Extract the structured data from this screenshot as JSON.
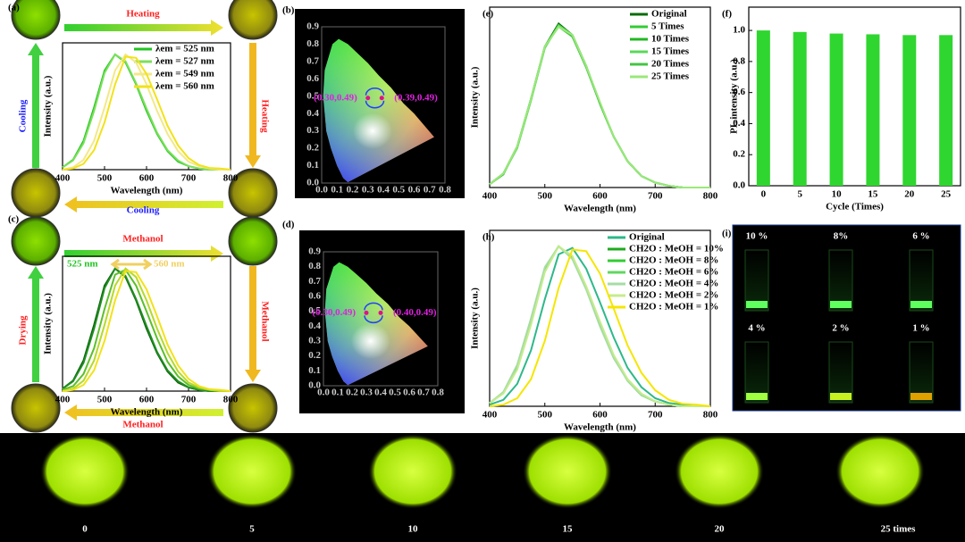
{
  "panel_labels": [
    "(a)",
    "(b)",
    "(c)",
    "(d)",
    "(e)",
    "(f)",
    "(g)",
    "(h)",
    "(i)"
  ],
  "arrows_a": [
    "Heating",
    "Heating",
    "Cooling",
    "Cooling"
  ],
  "arrows_c": [
    "Methanol",
    "Methanol",
    "Methanol",
    "Drying"
  ],
  "cie": [
    {
      "xticks": [
        {
          "value": 0,
          "label": "0.0"
        },
        0.1,
        0.2,
        0.3,
        0.4,
        0.5,
        0.6,
        0.7,
        0.8
      ],
      "yticks": [
        {
          "value": 0,
          "label": "0.0"
        },
        0.1,
        0.2,
        0.3,
        0.4,
        0.5,
        0.6,
        0.7,
        0.8,
        0.9
      ],
      "points": [
        {
          "label": "(0.30,0.49)",
          "x": 0.3,
          "y": 0.49
        },
        {
          "label": "(0.39,0.49)",
          "x": 0.39,
          "y": 0.49
        }
      ]
    },
    {
      "xticks": [
        {
          "value": 0,
          "label": "0.0"
        },
        0.1,
        0.2,
        0.3,
        0.4,
        0.5,
        0.6,
        0.7,
        0.8
      ],
      "yticks": [
        {
          "value": 0,
          "label": "0.0"
        },
        0.1,
        0.2,
        0.3,
        0.4,
        0.5,
        0.6,
        0.7,
        0.8,
        0.9
      ],
      "points": [
        {
          "label": "(0.30,0.49)",
          "x": 0.3,
          "y": 0.49
        },
        {
          "label": "(0.40,0.49)",
          "x": 0.4,
          "y": 0.49
        }
      ]
    }
  ],
  "vials": [
    "10 %",
    "8%",
    "6 %",
    "4 %",
    "2 %",
    "1 %"
  ],
  "strip": [
    "0",
    "5",
    "10",
    "15",
    "20",
    "25 times"
  ],
  "chart_data": [
    {
      "type": "line",
      "x_label": "Wavelength (nm)",
      "y_label": "Intensity (a.u.)",
      "xlim": [
        400,
        800
      ],
      "xticks": [
        400,
        500,
        600,
        700,
        800
      ],
      "ylim": [
        0,
        1.1
      ],
      "x": [
        400,
        425,
        450,
        475,
        500,
        525,
        550,
        575,
        600,
        625,
        650,
        675,
        700,
        725,
        750,
        775,
        800
      ],
      "series": [
        {
          "name": "λem = 525 nm",
          "color": "#22c422",
          "values": [
            0.02,
            0.085,
            0.25,
            0.54,
            0.86,
            1,
            0.93,
            0.74,
            0.51,
            0.31,
            0.16,
            0.07,
            0.03,
            0.01,
            0,
            0,
            0
          ]
        },
        {
          "name": "λem = 527 nm",
          "color": "#7be05a",
          "values": [
            0.02,
            0.08,
            0.23,
            0.51,
            0.84,
            1,
            0.94,
            0.75,
            0.53,
            0.32,
            0.17,
            0.08,
            0.03,
            0.01,
            0,
            0,
            0
          ]
        },
        {
          "name": "λem = 549 nm",
          "color": "#f3e88a",
          "values": [
            0,
            0.02,
            0.085,
            0.25,
            0.54,
            0.86,
            1,
            0.93,
            0.74,
            0.51,
            0.31,
            0.16,
            0.07,
            0.03,
            0.01,
            0,
            0
          ]
        },
        {
          "name": "λem = 560 nm",
          "color": "#f2e21a",
          "values": [
            0,
            0.01,
            0.05,
            0.17,
            0.41,
            0.74,
            0.98,
            0.97,
            0.83,
            0.61,
            0.38,
            0.21,
            0.1,
            0.04,
            0.015,
            0.01,
            0
          ]
        }
      ]
    },
    {
      "type": "line",
      "x_label": "Wavelength (nm)",
      "y_label": "Intensity (a.u.)",
      "xlim": [
        400,
        800
      ],
      "xticks": [
        400,
        500,
        600,
        700,
        800
      ],
      "ylim": [
        0,
        1.1
      ],
      "annotations": [
        "525 nm",
        "560 nm"
      ],
      "x": [
        400,
        425,
        450,
        475,
        500,
        525,
        550,
        575,
        600,
        625,
        650,
        675,
        700,
        725,
        750,
        775,
        800
      ],
      "series": [
        {
          "color": "#0b5e0b",
          "values": [
            0.02,
            0.085,
            0.25,
            0.54,
            0.86,
            1,
            0.93,
            0.74,
            0.51,
            0.31,
            0.16,
            0.07,
            0.03,
            0.01,
            0,
            0,
            0
          ]
        },
        {
          "color": "#1f8f1f",
          "values": [
            0.02,
            0.08,
            0.23,
            0.51,
            0.84,
            1,
            0.94,
            0.75,
            0.53,
            0.32,
            0.17,
            0.08,
            0.03,
            0.01,
            0,
            0,
            0
          ]
        },
        {
          "color": "#5cbf2a",
          "values": [
            0.01,
            0.04,
            0.14,
            0.35,
            0.67,
            0.95,
            0.99,
            0.86,
            0.65,
            0.43,
            0.24,
            0.12,
            0.05,
            0.02,
            0.01,
            0,
            0
          ]
        },
        {
          "color": "#b5d92a",
          "values": [
            0,
            0.02,
            0.085,
            0.25,
            0.54,
            0.86,
            1,
            0.93,
            0.74,
            0.51,
            0.31,
            0.16,
            0.07,
            0.03,
            0.01,
            0,
            0
          ]
        },
        {
          "color": "#f2e21a",
          "values": [
            0,
            0.01,
            0.05,
            0.17,
            0.41,
            0.74,
            0.98,
            0.97,
            0.83,
            0.61,
            0.38,
            0.21,
            0.1,
            0.04,
            0.015,
            0.01,
            0
          ]
        }
      ]
    },
    {
      "type": "line",
      "x_label": "Wavelength (nm)",
      "y_label": "Intensity (a.u.)",
      "xlim": [
        400,
        800
      ],
      "xticks": [
        400,
        500,
        600,
        700,
        800
      ],
      "ylim": [
        0,
        1.1
      ],
      "x": [
        400,
        425,
        450,
        475,
        500,
        525,
        550,
        575,
        600,
        625,
        650,
        675,
        700,
        725,
        750,
        775,
        800
      ],
      "series": [
        {
          "name": "Original",
          "color": "#0b6b0b",
          "values": [
            0.02,
            0.085,
            0.25,
            0.54,
            0.86,
            1,
            0.93,
            0.74,
            0.51,
            0.31,
            0.16,
            0.07,
            0.03,
            0.01,
            0,
            0,
            0
          ]
        },
        {
          "name": "5 Times",
          "color": "#33cc33",
          "values": [
            0.02,
            0.085,
            0.25,
            0.54,
            0.86,
            0.99,
            0.92,
            0.74,
            0.51,
            0.31,
            0.16,
            0.07,
            0.03,
            0.01,
            0,
            0,
            0
          ]
        },
        {
          "name": "10 Times",
          "color": "#22b822",
          "values": [
            0.02,
            0.08,
            0.25,
            0.54,
            0.86,
            0.99,
            0.93,
            0.74,
            0.51,
            0.31,
            0.16,
            0.07,
            0.03,
            0.01,
            0,
            0,
            0
          ]
        },
        {
          "name": "15 Times",
          "color": "#5ad85a",
          "values": [
            0.02,
            0.085,
            0.24,
            0.53,
            0.85,
            0.99,
            0.93,
            0.74,
            0.51,
            0.31,
            0.16,
            0.07,
            0.03,
            0.01,
            0,
            0,
            0
          ]
        },
        {
          "name": "20 Times",
          "color": "#44c444",
          "values": [
            0.02,
            0.085,
            0.25,
            0.54,
            0.86,
            0.98,
            0.92,
            0.73,
            0.51,
            0.31,
            0.16,
            0.07,
            0.03,
            0.01,
            0,
            0,
            0
          ]
        },
        {
          "name": "25 Times",
          "color": "#9be87a",
          "values": [
            0.02,
            0.085,
            0.25,
            0.54,
            0.86,
            0.98,
            0.93,
            0.74,
            0.52,
            0.31,
            0.16,
            0.07,
            0.03,
            0.01,
            0,
            0,
            0
          ]
        }
      ]
    },
    {
      "type": "bar",
      "x_label": "Cycle (Times)",
      "y_label": "PL intensity (a.u.)",
      "xlim": [
        -2,
        27
      ],
      "xticks": [
        0,
        5,
        10,
        15,
        20,
        25
      ],
      "ylim": [
        0,
        1.15
      ],
      "yticks": [
        {
          "value": 0,
          "label": "0.0"
        },
        0.2,
        0.4,
        0.6,
        0.8,
        {
          "value": 1,
          "label": "1.0"
        }
      ],
      "color": "#2fd62f",
      "x": [
        0,
        5,
        10,
        15,
        20,
        25
      ],
      "values": [
        1,
        0.99,
        0.98,
        0.975,
        0.97,
        0.97
      ]
    },
    {
      "type": "line",
      "x_label": "Wavelength (nm)",
      "y_label": "Intensity (a.u.)",
      "xlim": [
        400,
        800
      ],
      "xticks": [
        400,
        500,
        600,
        700,
        800
      ],
      "ylim": [
        0,
        1.1
      ],
      "x": [
        400,
        425,
        450,
        475,
        500,
        525,
        550,
        575,
        600,
        625,
        650,
        675,
        700,
        725,
        750,
        775,
        800
      ],
      "series": [
        {
          "name": "Original",
          "color": "#2db88a",
          "values": [
            0.01,
            0.04,
            0.14,
            0.35,
            0.67,
            0.95,
            0.99,
            0.86,
            0.65,
            0.43,
            0.24,
            0.12,
            0.05,
            0.02,
            0.01,
            0,
            0
          ]
        },
        {
          "name": "CH2O : MeOH = 10%",
          "color": "#1faa1f",
          "values": [
            0.02,
            0.085,
            0.25,
            0.54,
            0.86,
            1,
            0.93,
            0.74,
            0.51,
            0.31,
            0.16,
            0.07,
            0.03,
            0.01,
            0,
            0,
            0
          ]
        },
        {
          "name": "CH2O : MeOH = 8%",
          "color": "#33cc33",
          "values": [
            0.02,
            0.085,
            0.25,
            0.54,
            0.86,
            1,
            0.93,
            0.74,
            0.51,
            0.31,
            0.16,
            0.07,
            0.03,
            0.01,
            0,
            0,
            0
          ]
        },
        {
          "name": "CH2O : MeOH = 6%",
          "color": "#5fd85f",
          "values": [
            0.02,
            0.085,
            0.25,
            0.54,
            0.86,
            1,
            0.93,
            0.74,
            0.51,
            0.31,
            0.16,
            0.07,
            0.03,
            0.01,
            0,
            0,
            0
          ]
        },
        {
          "name": "CH2O : MeOH = 4%",
          "color": "#a5dca5",
          "values": [
            0.02,
            0.09,
            0.26,
            0.55,
            0.87,
            1,
            0.92,
            0.73,
            0.5,
            0.3,
            0.16,
            0.07,
            0.03,
            0.01,
            0,
            0,
            0
          ]
        },
        {
          "name": "CH2O : MeOH = 2%",
          "color": "#c4ec8c",
          "values": [
            0.02,
            0.08,
            0.23,
            0.51,
            0.84,
            1,
            0.94,
            0.75,
            0.53,
            0.32,
            0.17,
            0.08,
            0.03,
            0.01,
            0,
            0,
            0
          ]
        },
        {
          "name": "CH2O : MeOH = 1%",
          "color": "#f5e600",
          "values": [
            0,
            0.01,
            0.05,
            0.17,
            0.41,
            0.74,
            0.98,
            0.97,
            0.83,
            0.61,
            0.38,
            0.21,
            0.1,
            0.04,
            0.015,
            0.01,
            0
          ]
        }
      ]
    }
  ]
}
